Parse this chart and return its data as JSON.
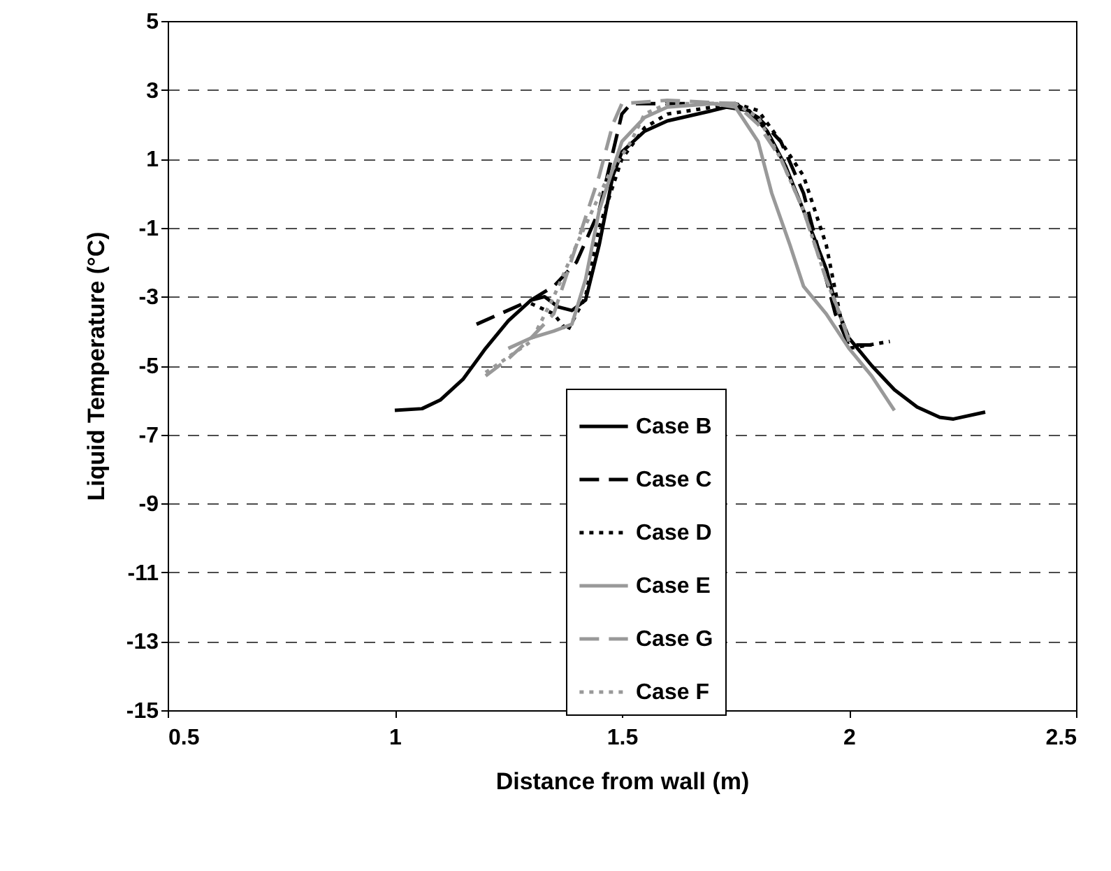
{
  "chart_data": {
    "type": "line",
    "xlabel": "Distance from wall (m)",
    "ylabel": "Liquid Temperature (°C)",
    "xlim": [
      0.5,
      2.5
    ],
    "xticks": [
      0.5,
      1,
      1.5,
      2,
      2.5
    ],
    "ylim": [
      -15,
      5
    ],
    "yticks": [
      -15,
      -13,
      -11,
      -9,
      -7,
      -5,
      -3,
      -1,
      1,
      3,
      5
    ],
    "grid": "y",
    "legend": "bottom",
    "marker": "none",
    "series": [
      {
        "name": "Case B",
        "color": "#000000",
        "line_style": "solid",
        "x": [
          1.0,
          1.06,
          1.1,
          1.15,
          1.2,
          1.25,
          1.3,
          1.33,
          1.36,
          1.39,
          1.42,
          1.45,
          1.48,
          1.5,
          1.55,
          1.6,
          1.7,
          1.73,
          1.78,
          1.82,
          1.86,
          1.9,
          1.95,
          1.97,
          2.0,
          2.05,
          2.1,
          2.15,
          2.2,
          2.23,
          2.3
        ],
        "values": [
          -6.3,
          -6.25,
          -6.0,
          -5.4,
          -4.5,
          -3.7,
          -3.1,
          -3.0,
          -3.3,
          -3.4,
          -3.1,
          -1.5,
          0.5,
          1.2,
          1.8,
          2.1,
          2.4,
          2.5,
          2.4,
          1.8,
          0.8,
          -0.5,
          -2.2,
          -3.2,
          -4.2,
          -5.0,
          -5.7,
          -6.2,
          -6.5,
          -6.55,
          -6.35
        ]
      },
      {
        "name": "Case C",
        "color": "#000000",
        "line_style": "dashed",
        "x": [
          1.18,
          1.3,
          1.35,
          1.4,
          1.45,
          1.5,
          1.52,
          1.6,
          1.75,
          1.8,
          1.85,
          1.9,
          1.95,
          1.97,
          2.0,
          2.05
        ],
        "values": [
          -3.8,
          -3.1,
          -2.7,
          -2.0,
          -0.5,
          2.3,
          2.6,
          2.6,
          2.6,
          2.2,
          1.5,
          0.0,
          -2.5,
          -3.5,
          -4.4,
          -4.4
        ]
      },
      {
        "name": "Case D",
        "color": "#000000",
        "line_style": "dotted",
        "x": [
          1.3,
          1.35,
          1.38,
          1.42,
          1.45,
          1.5,
          1.55,
          1.6,
          1.75,
          1.8,
          1.85,
          1.9,
          1.95,
          1.98,
          2.0,
          2.09
        ],
        "values": [
          -3.2,
          -3.5,
          -4.0,
          -3.0,
          -1.0,
          1.0,
          1.9,
          2.3,
          2.6,
          2.4,
          1.5,
          0.5,
          -1.5,
          -3.5,
          -4.5,
          -4.3
        ]
      },
      {
        "name": "Case E",
        "color": "#999999",
        "line_style": "solid",
        "x": [
          1.25,
          1.3,
          1.35,
          1.39,
          1.42,
          1.45,
          1.5,
          1.55,
          1.6,
          1.7,
          1.75,
          1.8,
          1.83,
          1.87,
          1.9,
          1.95,
          2.0,
          2.05,
          2.1
        ],
        "values": [
          -4.5,
          -4.2,
          -4.0,
          -3.8,
          -2.5,
          -0.5,
          1.5,
          2.2,
          2.5,
          2.6,
          2.5,
          1.5,
          0.0,
          -1.5,
          -2.7,
          -3.5,
          -4.5,
          -5.3,
          -6.3
        ]
      },
      {
        "name": "Case G",
        "color": "#999999",
        "line_style": "dashed",
        "x": [
          1.2,
          1.25,
          1.3,
          1.35,
          1.4,
          1.45,
          1.48,
          1.5,
          1.6,
          1.75,
          1.8,
          1.85,
          1.9,
          1.95,
          1.98,
          2.0
        ],
        "values": [
          -5.3,
          -4.8,
          -4.2,
          -3.5,
          -1.5,
          0.5,
          2.0,
          2.6,
          2.7,
          2.6,
          2.0,
          1.0,
          -0.5,
          -2.5,
          -3.5,
          -4.3
        ]
      },
      {
        "name": "Case F",
        "color": "#999999",
        "line_style": "dotted",
        "x": [
          1.2,
          1.3,
          1.35,
          1.4,
          1.47,
          1.52,
          1.55,
          1.6,
          1.75,
          1.8,
          1.85,
          1.9,
          1.95,
          2.0
        ],
        "values": [
          -5.2,
          -4.3,
          -3.0,
          -1.5,
          0.5,
          1.5,
          2.3,
          2.6,
          2.6,
          2.2,
          1.0,
          -0.5,
          -2.5,
          -4.2
        ]
      }
    ]
  }
}
